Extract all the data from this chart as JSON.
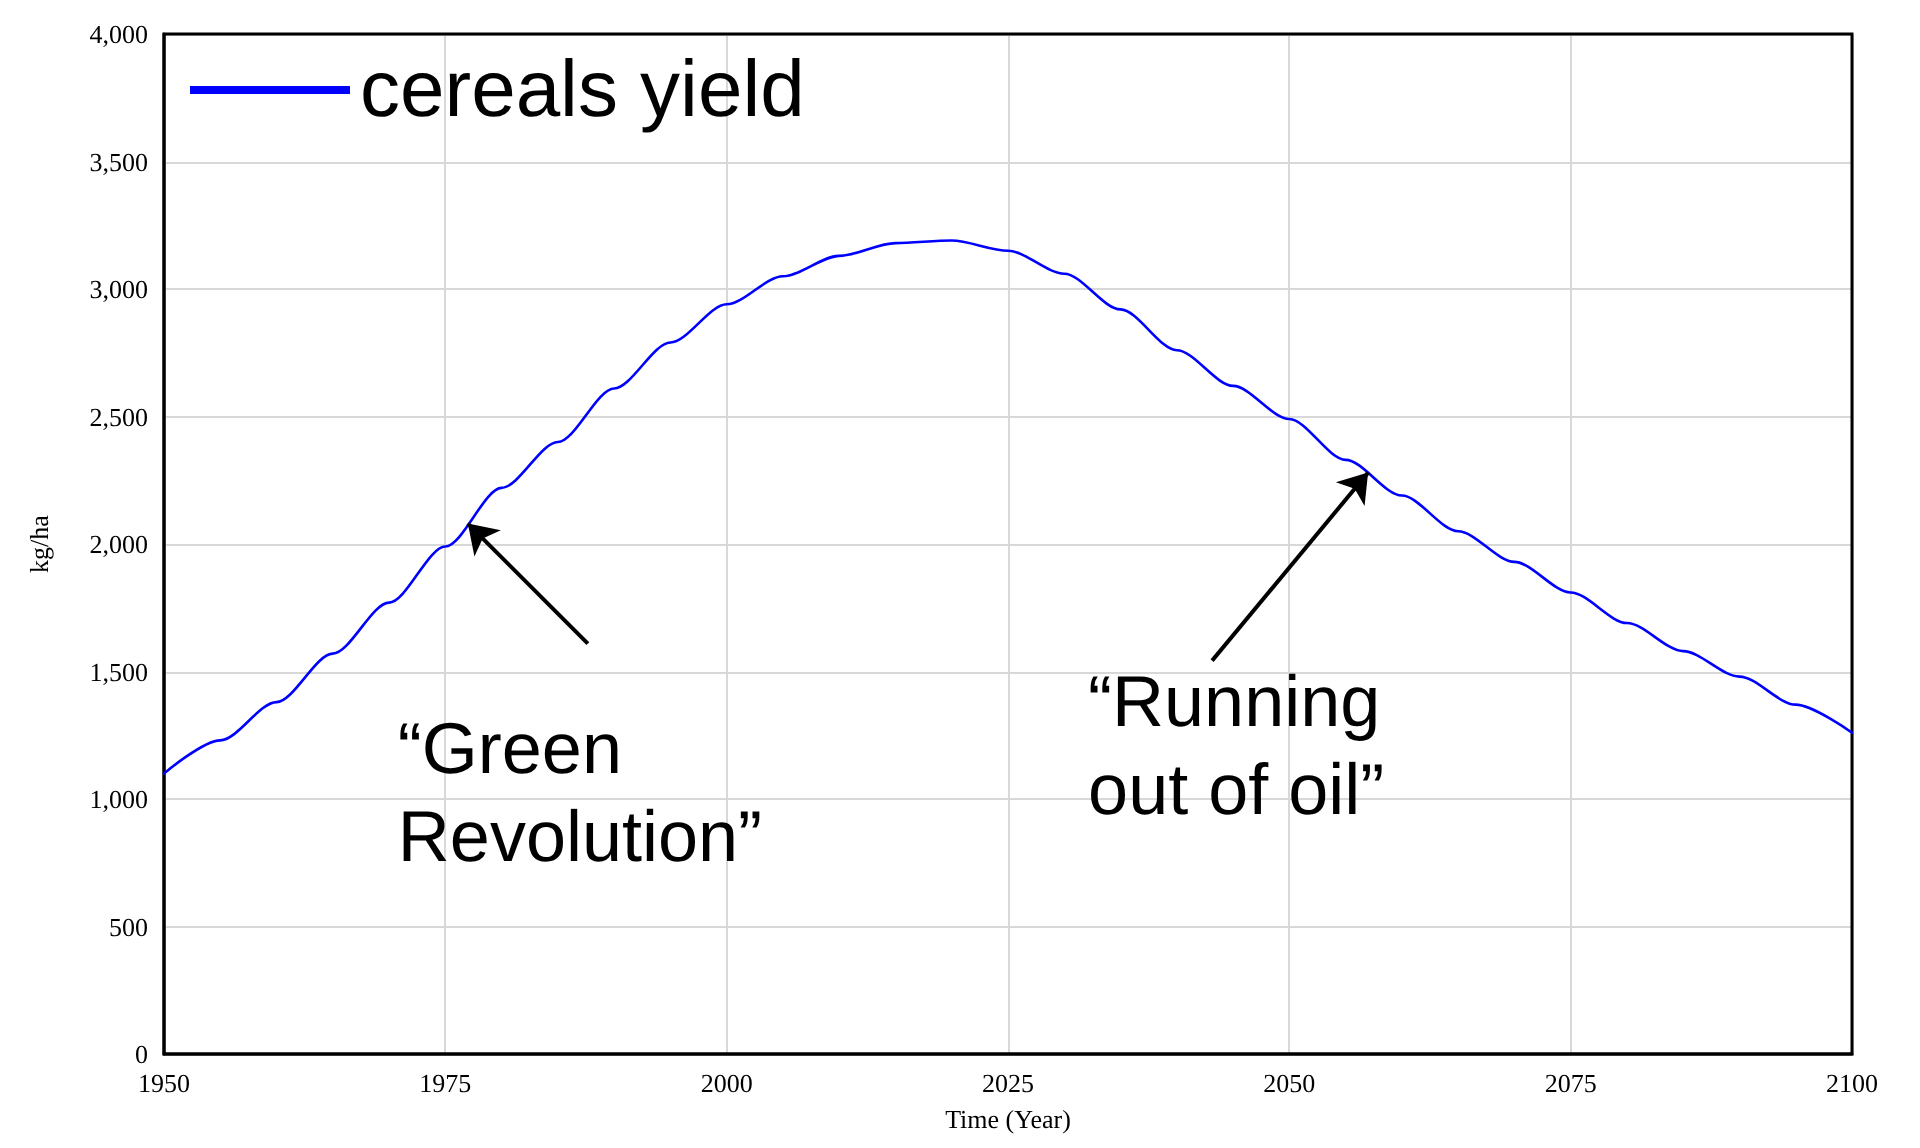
{
  "chart_data": {
    "type": "line",
    "xlabel": "Time (Year)",
    "ylabel": "kg/ha",
    "x": [
      1950,
      1955,
      1960,
      1965,
      1970,
      1975,
      1980,
      1985,
      1990,
      1995,
      2000,
      2005,
      2010,
      2015,
      2020,
      2025,
      2030,
      2035,
      2040,
      2045,
      2050,
      2055,
      2060,
      2065,
      2070,
      2075,
      2080,
      2085,
      2090,
      2095,
      2100
    ],
    "series": [
      {
        "name": "cereals yield",
        "color": "#0000ff",
        "values": [
          1100,
          1230,
          1380,
          1570,
          1770,
          1990,
          2220,
          2400,
          2610,
          2790,
          2940,
          3050,
          3130,
          3180,
          3190,
          3150,
          3060,
          2920,
          2760,
          2620,
          2490,
          2330,
          2190,
          2050,
          1930,
          1810,
          1690,
          1580,
          1480,
          1370,
          1260
        ]
      }
    ],
    "xlim": [
      1950,
      2100
    ],
    "xticks": [
      1950,
      1975,
      2000,
      2025,
      2050,
      2075,
      2100
    ],
    "ylim": [
      0,
      4000
    ],
    "yticks": [
      0,
      500,
      {
        "value": 1000,
        "label": "1,000"
      },
      {
        "value": 1500,
        "label": "1,500"
      },
      {
        "value": 2000,
        "label": "2,000"
      },
      {
        "value": 2500,
        "label": "2,500"
      },
      {
        "value": 3000,
        "label": "3,000"
      },
      {
        "value": 3500,
        "label": "3,500"
      },
      {
        "value": 4000,
        "label": "4,000"
      }
    ],
    "annotations": [
      {
        "text": "“Green\nRevolution”",
        "x": 1977,
        "y": 2080
      },
      {
        "text": "“Running\nout of oil”",
        "x": 2057,
        "y": 2280
      }
    ],
    "grid": true,
    "legend": "top left",
    "marker": "none",
    "line_style": "solid"
  }
}
